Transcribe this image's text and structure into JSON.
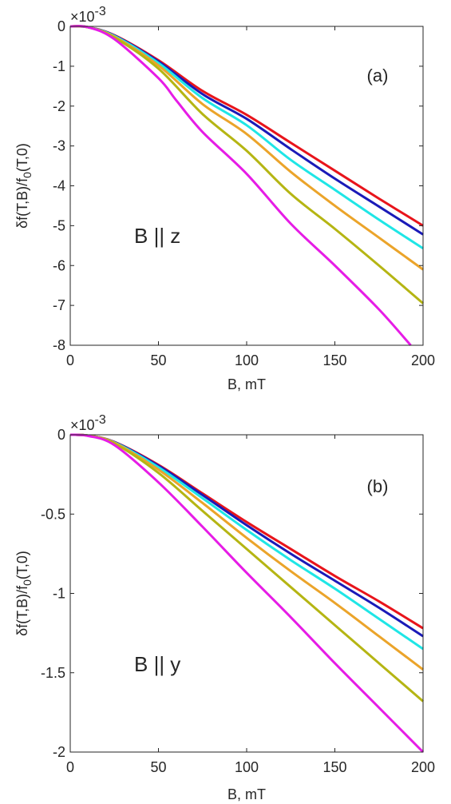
{
  "chart_data": [
    {
      "type": "line",
      "panel_label": "(a)",
      "annotation": "B || z",
      "xlabel": "B, mT",
      "ylabel_prefix": "δf(T,B)/f",
      "ylabel_sub": "0",
      "ylabel_suffix": "(T,0)",
      "exponent_base": "×10",
      "exponent_power": "-3",
      "xlim": [
        0,
        200
      ],
      "ylim": [
        -8,
        0
      ],
      "xticks": [
        0,
        50,
        100,
        150,
        200
      ],
      "yticks": [
        0,
        -1,
        -2,
        -3,
        -4,
        -5,
        -6,
        -7,
        -8
      ],
      "ytick_labels": [
        "0",
        "-1",
        "-2",
        "-3",
        "-4",
        "-5",
        "-6",
        "-7",
        "-8"
      ],
      "grid": false,
      "series": [
        {
          "color": "#e8141b",
          "x": [
            0,
            10,
            25,
            50,
            75,
            100,
            125,
            150,
            175,
            200
          ],
          "y": [
            0,
            -0.02,
            -0.22,
            -0.85,
            -1.62,
            -2.22,
            -2.92,
            -3.62,
            -4.32,
            -5.0
          ]
        },
        {
          "color": "#1a1ab8",
          "x": [
            0,
            10,
            25,
            50,
            75,
            100,
            125,
            150,
            175,
            200
          ],
          "y": [
            0,
            -0.02,
            -0.23,
            -0.88,
            -1.7,
            -2.32,
            -3.08,
            -3.82,
            -4.52,
            -5.22
          ]
        },
        {
          "color": "#1fe6e6",
          "x": [
            0,
            10,
            25,
            50,
            75,
            100,
            125,
            150,
            175,
            200
          ],
          "y": [
            0,
            -0.02,
            -0.24,
            -0.92,
            -1.8,
            -2.48,
            -3.35,
            -4.1,
            -4.85,
            -5.57
          ]
        },
        {
          "color": "#eba42a",
          "x": [
            0,
            10,
            25,
            50,
            75,
            100,
            125,
            150,
            175,
            200
          ],
          "y": [
            0,
            -0.02,
            -0.26,
            -0.98,
            -1.95,
            -2.7,
            -3.65,
            -4.5,
            -5.3,
            -6.1
          ]
        },
        {
          "color": "#b5b513",
          "x": [
            0,
            10,
            25,
            50,
            75,
            100,
            125,
            150,
            175,
            200
          ],
          "y": [
            0,
            -0.02,
            -0.28,
            -1.06,
            -2.2,
            -3.12,
            -4.2,
            -5.08,
            -6.0,
            -6.95
          ]
        },
        {
          "color": "#e61ce6",
          "x": [
            0,
            10,
            25,
            50,
            60,
            75,
            100,
            125,
            150,
            175,
            193
          ],
          "y": [
            0,
            -0.02,
            -0.32,
            -1.3,
            -1.85,
            -2.65,
            -3.7,
            -4.95,
            -6.0,
            -7.1,
            -8.0
          ]
        }
      ]
    },
    {
      "type": "line",
      "panel_label": "(b)",
      "annotation": "B || y",
      "xlabel": "B, mT",
      "ylabel_prefix": "δf(T,B)/f",
      "ylabel_sub": "0",
      "ylabel_suffix": "(T,0)",
      "exponent_base": "×10",
      "exponent_power": "-3",
      "xlim": [
        0,
        200
      ],
      "ylim": [
        -2,
        0
      ],
      "xticks": [
        0,
        50,
        100,
        150,
        200
      ],
      "yticks": [
        0,
        -0.5,
        -1,
        -1.5,
        -2
      ],
      "ytick_labels": [
        "0",
        "-0.5",
        "-1",
        "-1.5",
        "-2"
      ],
      "grid": false,
      "series": [
        {
          "color": "#e8141b",
          "x": [
            0,
            10,
            25,
            50,
            75,
            100,
            125,
            150,
            175,
            200
          ],
          "y": [
            0,
            -0.005,
            -0.045,
            -0.19,
            -0.37,
            -0.55,
            -0.72,
            -0.89,
            -1.05,
            -1.22
          ]
        },
        {
          "color": "#1a1ab8",
          "x": [
            0,
            10,
            25,
            50,
            75,
            100,
            125,
            150,
            175,
            200
          ],
          "y": [
            0,
            -0.005,
            -0.046,
            -0.195,
            -0.38,
            -0.57,
            -0.75,
            -0.92,
            -1.09,
            -1.27
          ]
        },
        {
          "color": "#1fe6e6",
          "x": [
            0,
            10,
            25,
            50,
            75,
            100,
            125,
            150,
            175,
            200
          ],
          "y": [
            0,
            -0.005,
            -0.048,
            -0.205,
            -0.4,
            -0.6,
            -0.79,
            -0.97,
            -1.16,
            -1.35
          ]
        },
        {
          "color": "#eba42a",
          "x": [
            0,
            10,
            25,
            50,
            75,
            100,
            125,
            150,
            175,
            200
          ],
          "y": [
            0,
            -0.005,
            -0.05,
            -0.22,
            -0.43,
            -0.65,
            -0.86,
            -1.06,
            -1.27,
            -1.48
          ]
        },
        {
          "color": "#b5b513",
          "x": [
            0,
            10,
            25,
            50,
            75,
            100,
            125,
            150,
            175,
            200
          ],
          "y": [
            0,
            -0.006,
            -0.055,
            -0.24,
            -0.48,
            -0.72,
            -0.96,
            -1.2,
            -1.44,
            -1.68
          ]
        },
        {
          "color": "#e61ce6",
          "x": [
            0,
            10,
            25,
            50,
            75,
            100,
            125,
            150,
            175,
            200
          ],
          "y": [
            0,
            -0.007,
            -0.065,
            -0.3,
            -0.58,
            -0.87,
            -1.15,
            -1.44,
            -1.72,
            -2.0
          ]
        }
      ]
    }
  ]
}
